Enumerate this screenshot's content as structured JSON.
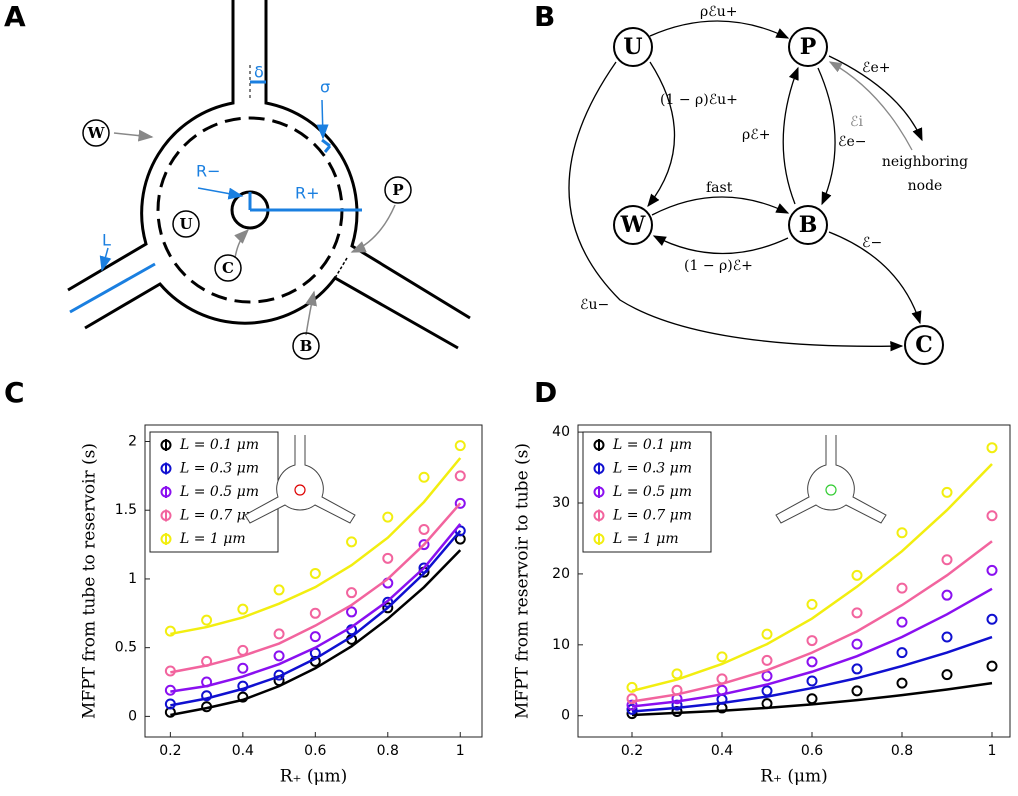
{
  "panel_labels": [
    "A",
    "B",
    "C",
    "D"
  ],
  "panel_a": {
    "delta": "δ",
    "sigma": "σ",
    "W": "W",
    "U": "U",
    "Rminus": "R−",
    "Rplus": "R+",
    "P": "P",
    "L": "L",
    "C": "C",
    "B": "B"
  },
  "panel_b": {
    "nodes": [
      "U",
      "P",
      "W",
      "B",
      "C"
    ],
    "edges": [
      "ρℰu+",
      "(1 − ρ)ℰu+",
      "ℰe+",
      "ℰi",
      "ℰe−",
      "ρℰ+",
      "fast",
      "(1 − ρ)ℰ+",
      "ℰ−",
      "ℰu−"
    ],
    "neighbor": [
      "neighboring",
      "node"
    ]
  },
  "chart_data": [
    {
      "type": "scatter",
      "xlabel": "R₊ (μm)",
      "ylabel": "MFPT from tube to reservoir (s)",
      "x": [
        0.2,
        0.3,
        0.4,
        0.5,
        0.6,
        0.7,
        0.8,
        0.9,
        1
      ],
      "xlim": [
        0.13,
        1.06
      ],
      "xticks": [
        0.2,
        0.4,
        0.6,
        0.8,
        1
      ],
      "ylim": [
        -0.15,
        2.12
      ],
      "yticks": [
        0,
        0.5,
        1,
        1.5,
        2
      ],
      "series": [
        {
          "name": "L = 0.1 μm",
          "color": "#000000",
          "values": [
            0.03,
            0.07,
            0.14,
            0.26,
            0.4,
            0.56,
            0.79,
            1.05,
            1.29
          ],
          "fit": [
            0.01,
            0.06,
            0.12,
            0.22,
            0.35,
            0.51,
            0.71,
            0.94,
            1.21
          ]
        },
        {
          "name": "L = 0.3 μm",
          "color": "#1010d0",
          "values": [
            0.09,
            0.15,
            0.22,
            0.3,
            0.46,
            0.63,
            0.83,
            1.08,
            1.35
          ],
          "fit": [
            0.08,
            0.13,
            0.2,
            0.29,
            0.42,
            0.58,
            0.79,
            1.04,
            1.35
          ]
        },
        {
          "name": "L = 0.5 μm",
          "color": "#8a10f0",
          "values": [
            0.19,
            0.25,
            0.35,
            0.44,
            0.58,
            0.76,
            0.97,
            1.25,
            1.55
          ],
          "fit": [
            0.18,
            0.22,
            0.29,
            0.38,
            0.5,
            0.65,
            0.84,
            1.08,
            1.4
          ]
        },
        {
          "name": "L = 0.7 μm",
          "color": "#f2649e",
          "values": [
            0.33,
            0.4,
            0.48,
            0.6,
            0.75,
            0.9,
            1.15,
            1.36,
            1.75
          ],
          "fit": [
            0.32,
            0.37,
            0.44,
            0.53,
            0.66,
            0.81,
            1.0,
            1.25,
            1.55
          ]
        },
        {
          "name": "L = 1 μm",
          "color": "#f2ee10",
          "values": [
            0.62,
            0.7,
            0.78,
            0.92,
            1.04,
            1.27,
            1.45,
            1.74,
            1.97
          ],
          "fit": [
            0.6,
            0.65,
            0.72,
            0.82,
            0.94,
            1.1,
            1.3,
            1.56,
            1.88
          ]
        }
      ]
    },
    {
      "type": "scatter",
      "xlabel": "R₊ (μm)",
      "ylabel": "MFPT from reservoir to tube (s)",
      "x": [
        0.2,
        0.3,
        0.4,
        0.5,
        0.6,
        0.7,
        0.8,
        0.9,
        1
      ],
      "xlim": [
        0.08,
        1.04
      ],
      "xticks": [
        0.2,
        0.4,
        0.6,
        0.8,
        1
      ],
      "ylim": [
        -3,
        41
      ],
      "yticks": [
        0,
        10,
        20,
        30,
        40
      ],
      "series": [
        {
          "name": "L = 0.1 μm",
          "color": "#000000",
          "values": [
            0.3,
            0.6,
            1.1,
            1.7,
            2.4,
            3.5,
            4.6,
            5.8,
            7.0
          ],
          "fit": [
            0.1,
            0.4,
            0.7,
            1.1,
            1.6,
            2.2,
            2.9,
            3.7,
            4.6
          ]
        },
        {
          "name": "L = 0.3 μm",
          "color": "#1010d0",
          "values": [
            0.9,
            1.5,
            2.3,
            3.5,
            4.9,
            6.6,
            8.9,
            11.1,
            13.6
          ],
          "fit": [
            0.6,
            1.1,
            1.8,
            2.7,
            3.9,
            5.3,
            7.0,
            8.9,
            11.1
          ]
        },
        {
          "name": "L = 0.5 μm",
          "color": "#8a10f0",
          "values": [
            1.5,
            2.4,
            3.6,
            5.6,
            7.6,
            10.1,
            13.2,
            17.0,
            20.5
          ],
          "fit": [
            1.3,
            2.0,
            3.0,
            4.4,
            6.2,
            8.4,
            11.1,
            14.3,
            17.9
          ]
        },
        {
          "name": "L = 0.7 μm",
          "color": "#f2649e",
          "values": [
            2.4,
            3.6,
            5.2,
            7.8,
            10.6,
            14.5,
            18.0,
            22.0,
            28.2
          ],
          "fit": [
            2.0,
            3.0,
            4.5,
            6.4,
            8.9,
            11.9,
            15.6,
            19.8,
            24.6
          ]
        },
        {
          "name": "L = 1 μm",
          "color": "#f2ee10",
          "values": [
            4.0,
            5.9,
            8.3,
            11.5,
            15.7,
            19.8,
            25.8,
            31.5,
            37.8
          ],
          "fit": [
            3.5,
            5.1,
            7.3,
            10.1,
            13.7,
            18.2,
            23.2,
            29.0,
            35.5
          ]
        }
      ]
    }
  ]
}
